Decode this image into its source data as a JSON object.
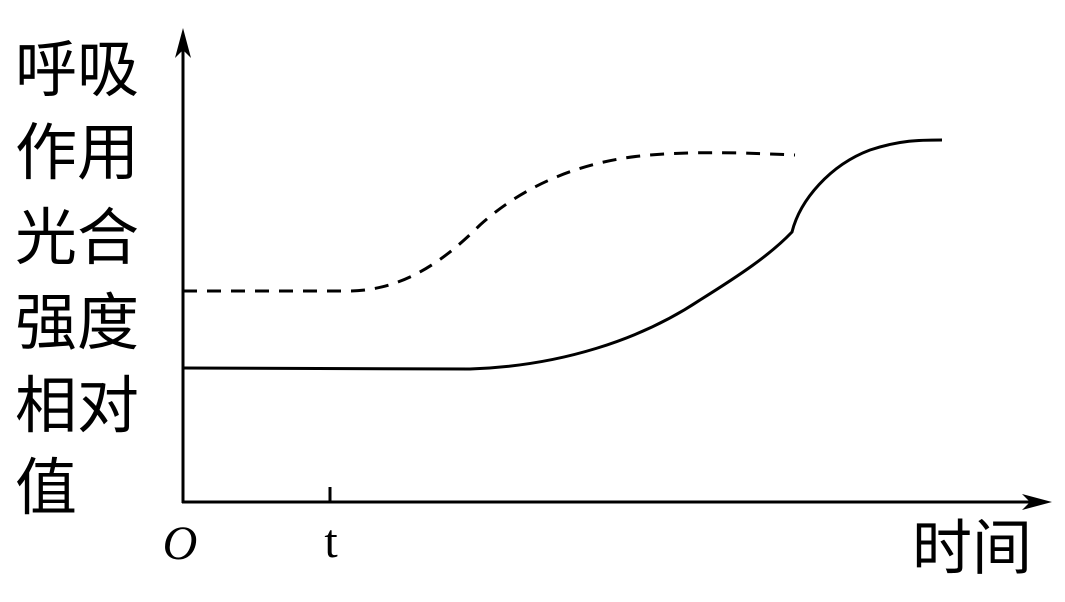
{
  "y_axis_label": {
    "lines": [
      "呼吸",
      "作用",
      "光合",
      "强度",
      "相对",
      "值"
    ]
  },
  "x_axis_label": "时间",
  "origin_label": "O",
  "x_tick_label": "t"
}
